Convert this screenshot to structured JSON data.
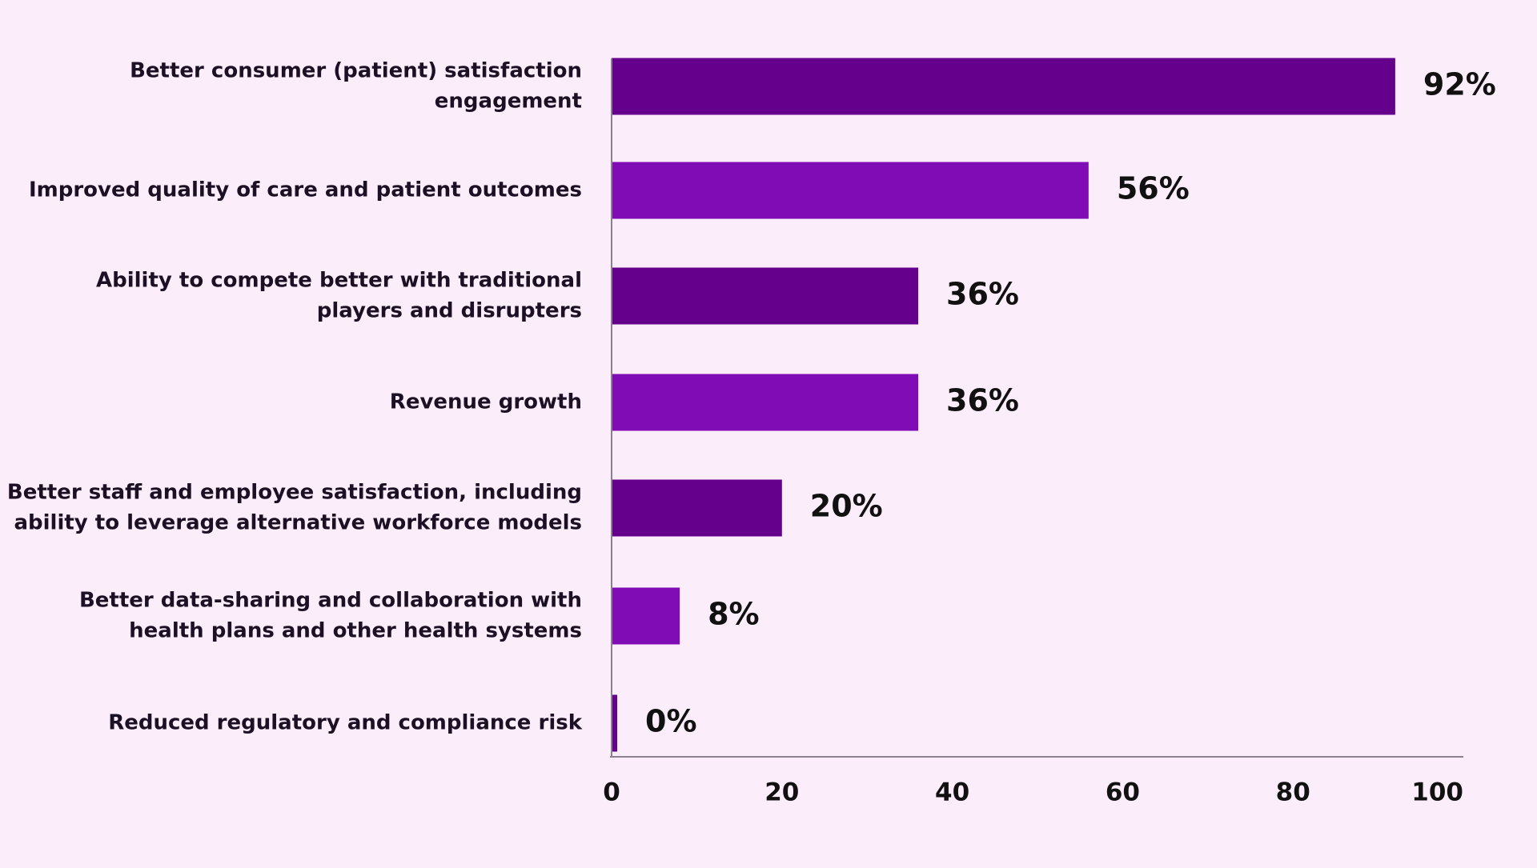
{
  "chart_data": {
    "type": "bar",
    "orientation": "horizontal",
    "categories": [
      [
        "Better consumer (patient) satisfaction",
        "engagement"
      ],
      [
        "Improved quality of care and patient outcomes"
      ],
      [
        "Ability to compete better with traditional",
        "players and disrupters"
      ],
      [
        "Revenue growth"
      ],
      [
        "Better staff and employee satisfaction, including",
        "ability to leverage alternative workforce models"
      ],
      [
        "Better data-sharing and collaboration with",
        "health plans and other health systems"
      ],
      [
        "Reduced regulatory and compliance risk"
      ]
    ],
    "values": [
      92,
      56,
      36,
      36,
      20,
      8,
      0
    ],
    "data_labels": [
      "92%",
      "56%",
      "36%",
      "36%",
      "20%",
      "8%",
      "0%"
    ],
    "xlim": [
      0,
      100
    ],
    "x_ticks": [
      0,
      20,
      40,
      60,
      80,
      100
    ],
    "x_tick_labels": [
      "0",
      "20",
      "40",
      "60",
      "80",
      "100"
    ],
    "grid": false,
    "legend": "none",
    "colors": {
      "background": "#fcedfb",
      "bar_dark": "#65008c",
      "bar_light": "#800cb6",
      "axis": "#8a7f8f",
      "text": "#111111"
    }
  }
}
